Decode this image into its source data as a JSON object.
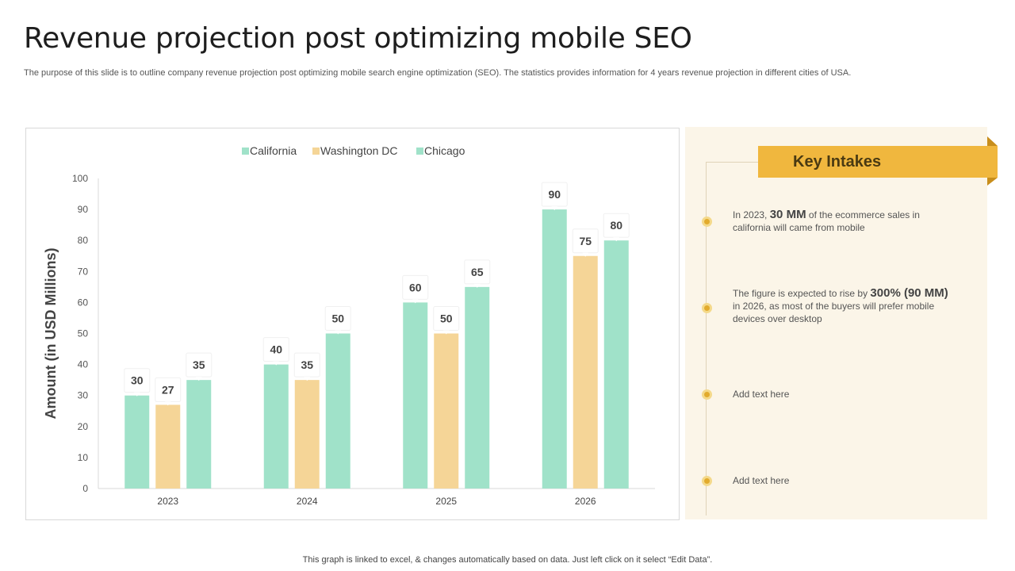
{
  "page": {
    "title": "Revenue projection post optimizing mobile SEO",
    "subtitle": "The purpose of this slide is to outline company revenue projection post optimizing mobile search engine optimization (SEO). The statistics provides information for 4 years revenue projection in different cities of USA.",
    "footnote": "This graph is linked to excel, & changes automatically based on data. Just left click on it select “Edit Data”."
  },
  "key_intakes": {
    "heading": "Key Intakes",
    "items": [
      {
        "pre": "In 2023, ",
        "highlight": "30 MM",
        "post": " of the ecommerce sales in california will came from mobile"
      },
      {
        "pre": "The figure is expected to rise by ",
        "highlight": "300% (90 MM)",
        "post": " in 2026, as most of the buyers will prefer mobile devices over desktop"
      },
      {
        "pre": "Add text here",
        "highlight": "",
        "post": ""
      },
      {
        "pre": "Add text here",
        "highlight": "",
        "post": ""
      }
    ]
  },
  "colors": {
    "california": "#a0e2c9",
    "washington": "#f5d597",
    "chicago": "#a0e2c9",
    "accent": "#f0b73e"
  },
  "chart_data": {
    "type": "bar",
    "title": "",
    "xlabel": "",
    "ylabel": "Amount (in USD Millions)",
    "ylim": [
      0,
      100
    ],
    "yticks": [
      0,
      10,
      20,
      30,
      40,
      50,
      60,
      70,
      80,
      90,
      100
    ],
    "categories": [
      "2023",
      "2024",
      "2025",
      "2026"
    ],
    "legend_position": "top",
    "series": [
      {
        "name": "California",
        "values": [
          30,
          40,
          60,
          90
        ]
      },
      {
        "name": "Washington DC",
        "values": [
          27,
          35,
          50,
          75
        ]
      },
      {
        "name": "Chicago",
        "values": [
          35,
          50,
          65,
          80
        ]
      }
    ]
  }
}
